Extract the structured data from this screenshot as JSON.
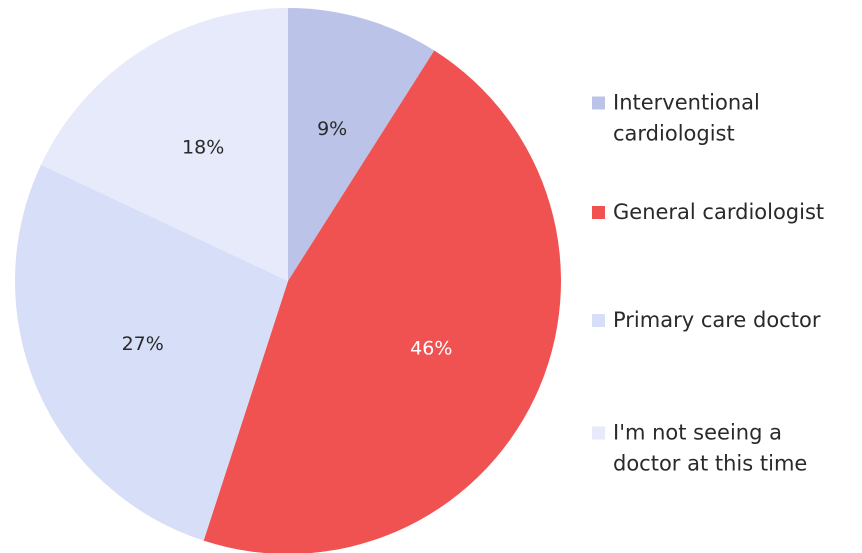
{
  "chart_data": {
    "type": "pie",
    "start_angle_deg": 0,
    "direction": "clockwise",
    "legend_position": "right",
    "series": [
      {
        "name": "Interventional cardiologist",
        "legend_lines": [
          "Interventional",
          "cardiologist"
        ],
        "value": 9,
        "label": "9%",
        "color": "#bcc3e8",
        "label_color": "#2a2a2a"
      },
      {
        "name": "General cardiologist",
        "legend_lines": [
          "General cardiologist"
        ],
        "value": 46,
        "label": "46%",
        "color": "#f05252",
        "label_color": "#ffffff"
      },
      {
        "name": "Primary care doctor",
        "legend_lines": [
          "Primary care doctor"
        ],
        "value": 27,
        "label": "27%",
        "color": "#d7def8",
        "label_color": "#2a2a2a"
      },
      {
        "name": "I'm not seeing a doctor at this time",
        "legend_lines": [
          "I'm not seeing a",
          "doctor at this time"
        ],
        "value": 18,
        "label": "18%",
        "color": "#e6eafa",
        "label_color": "#2a2a2a"
      }
    ]
  }
}
